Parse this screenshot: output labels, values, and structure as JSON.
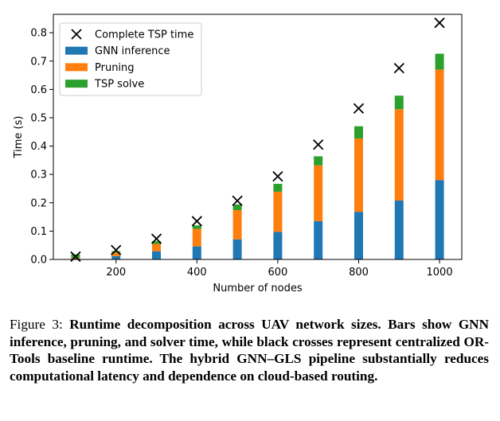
{
  "chart_data": {
    "type": "bar",
    "stacked": true,
    "xlabel": "Number of nodes",
    "ylabel": "Time (s)",
    "x": [
      100,
      200,
      300,
      400,
      500,
      600,
      700,
      800,
      900,
      1000
    ],
    "xticks": [
      "200",
      "400",
      "600",
      "800",
      "1000"
    ],
    "xtick_values": [
      200,
      400,
      600,
      800,
      1000
    ],
    "xlim": [
      45,
      1055
    ],
    "ylim": [
      0,
      0.865
    ],
    "yticks": [
      "0.0",
      "0.1",
      "0.2",
      "0.3",
      "0.4",
      "0.5",
      "0.6",
      "0.7",
      "0.8"
    ],
    "ytick_values": [
      0,
      0.1,
      0.2,
      0.3,
      0.4,
      0.5,
      0.6,
      0.7,
      0.8
    ],
    "grid": false,
    "legend_position": "top-left",
    "series": [
      {
        "name": "GNN inference",
        "color": "#1f77b4",
        "values": [
          0.003,
          0.012,
          0.029,
          0.046,
          0.071,
          0.097,
          0.135,
          0.168,
          0.208,
          0.28
        ]
      },
      {
        "name": "Pruning",
        "color": "#ff7f0e",
        "values": [
          0.003,
          0.012,
          0.026,
          0.062,
          0.103,
          0.142,
          0.197,
          0.259,
          0.322,
          0.39
        ]
      },
      {
        "name": "TSP solve",
        "color": "#2ca02c",
        "values": [
          0.012,
          0.005,
          0.009,
          0.012,
          0.02,
          0.028,
          0.032,
          0.043,
          0.048,
          0.056
        ]
      }
    ],
    "markers": {
      "name": "Complete TSP time",
      "marker": "x",
      "color": "#000000",
      "values": [
        0.01,
        0.033,
        0.073,
        0.135,
        0.207,
        0.293,
        0.405,
        0.533,
        0.675,
        0.835
      ]
    }
  },
  "caption": {
    "label": "Figure 3:",
    "text": "Runtime decomposition across UAV network sizes. Bars show GNN inference, pruning, and solver time, while black crosses represent centralized OR-Tools baseline runtime. The hybrid GNN–GLS pipeline substantially reduces computational latency and dependence on cloud-based routing."
  }
}
